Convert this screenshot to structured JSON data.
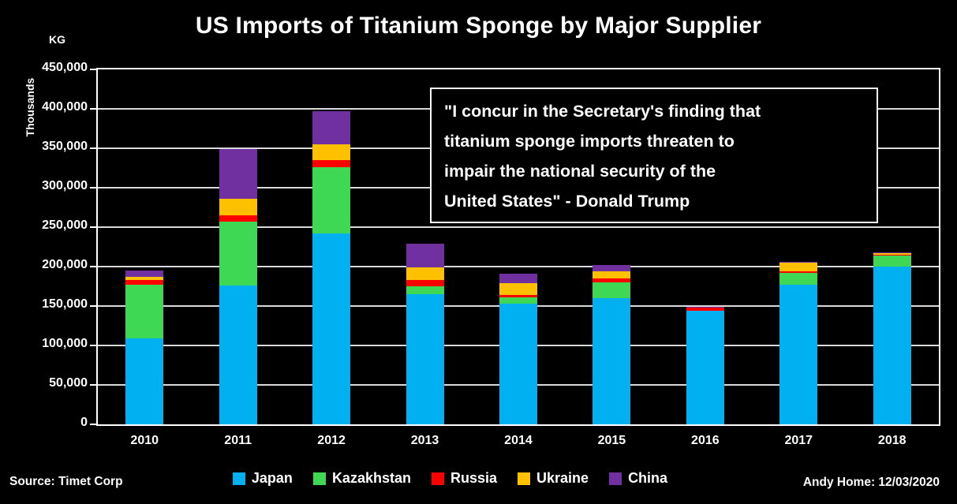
{
  "page": {
    "title": "US Imports of Titanium Sponge by Major Supplier",
    "unit_label": "KG",
    "axis_unit_label": "Thousands",
    "source": "Source: Timet Corp",
    "credit": "Andy Home: 12/03/2020",
    "quote_lines": [
      "\"I concur in the Secretary's finding that",
      "titanium sponge imports threaten to",
      "impair the national security of the",
      "United States\" - Donald Trump"
    ]
  },
  "colors": {
    "background": "#000000",
    "text": "#FFFFFF",
    "gridline": "#D9D9D9",
    "frame": "#FFFFFF"
  },
  "chart_data": {
    "type": "bar",
    "stacked": true,
    "title": "US Imports of Titanium Sponge by Major Supplier",
    "xlabel": "",
    "ylabel": "Thousands KG",
    "ylim": [
      0,
      450000
    ],
    "ytick_step": 50000,
    "grid": true,
    "legend_position": "bottom",
    "categories": [
      "2010",
      "2011",
      "2012",
      "2013",
      "2014",
      "2015",
      "2016",
      "2017",
      "2018"
    ],
    "series": [
      {
        "name": "Japan",
        "color": "#00B0F0",
        "values": [
          109000,
          176000,
          242000,
          165000,
          153000,
          160000,
          144000,
          177000,
          200000
        ]
      },
      {
        "name": "Kazakhstan",
        "color": "#3ED854",
        "values": [
          68000,
          81000,
          84000,
          10000,
          8000,
          20000,
          0,
          15000,
          14000
        ]
      },
      {
        "name": "Russia",
        "color": "#FF0000",
        "values": [
          6000,
          8000,
          9000,
          8000,
          3000,
          5000,
          4000,
          2000,
          1000
        ]
      },
      {
        "name": "Ukraine",
        "color": "#FFC000",
        "values": [
          4000,
          21000,
          20000,
          16000,
          15000,
          9000,
          0,
          11000,
          2000
        ]
      },
      {
        "name": "China",
        "color": "#7030A0",
        "values": [
          8000,
          63000,
          42000,
          30000,
          12000,
          8000,
          1000,
          1000,
          1000
        ]
      }
    ]
  }
}
